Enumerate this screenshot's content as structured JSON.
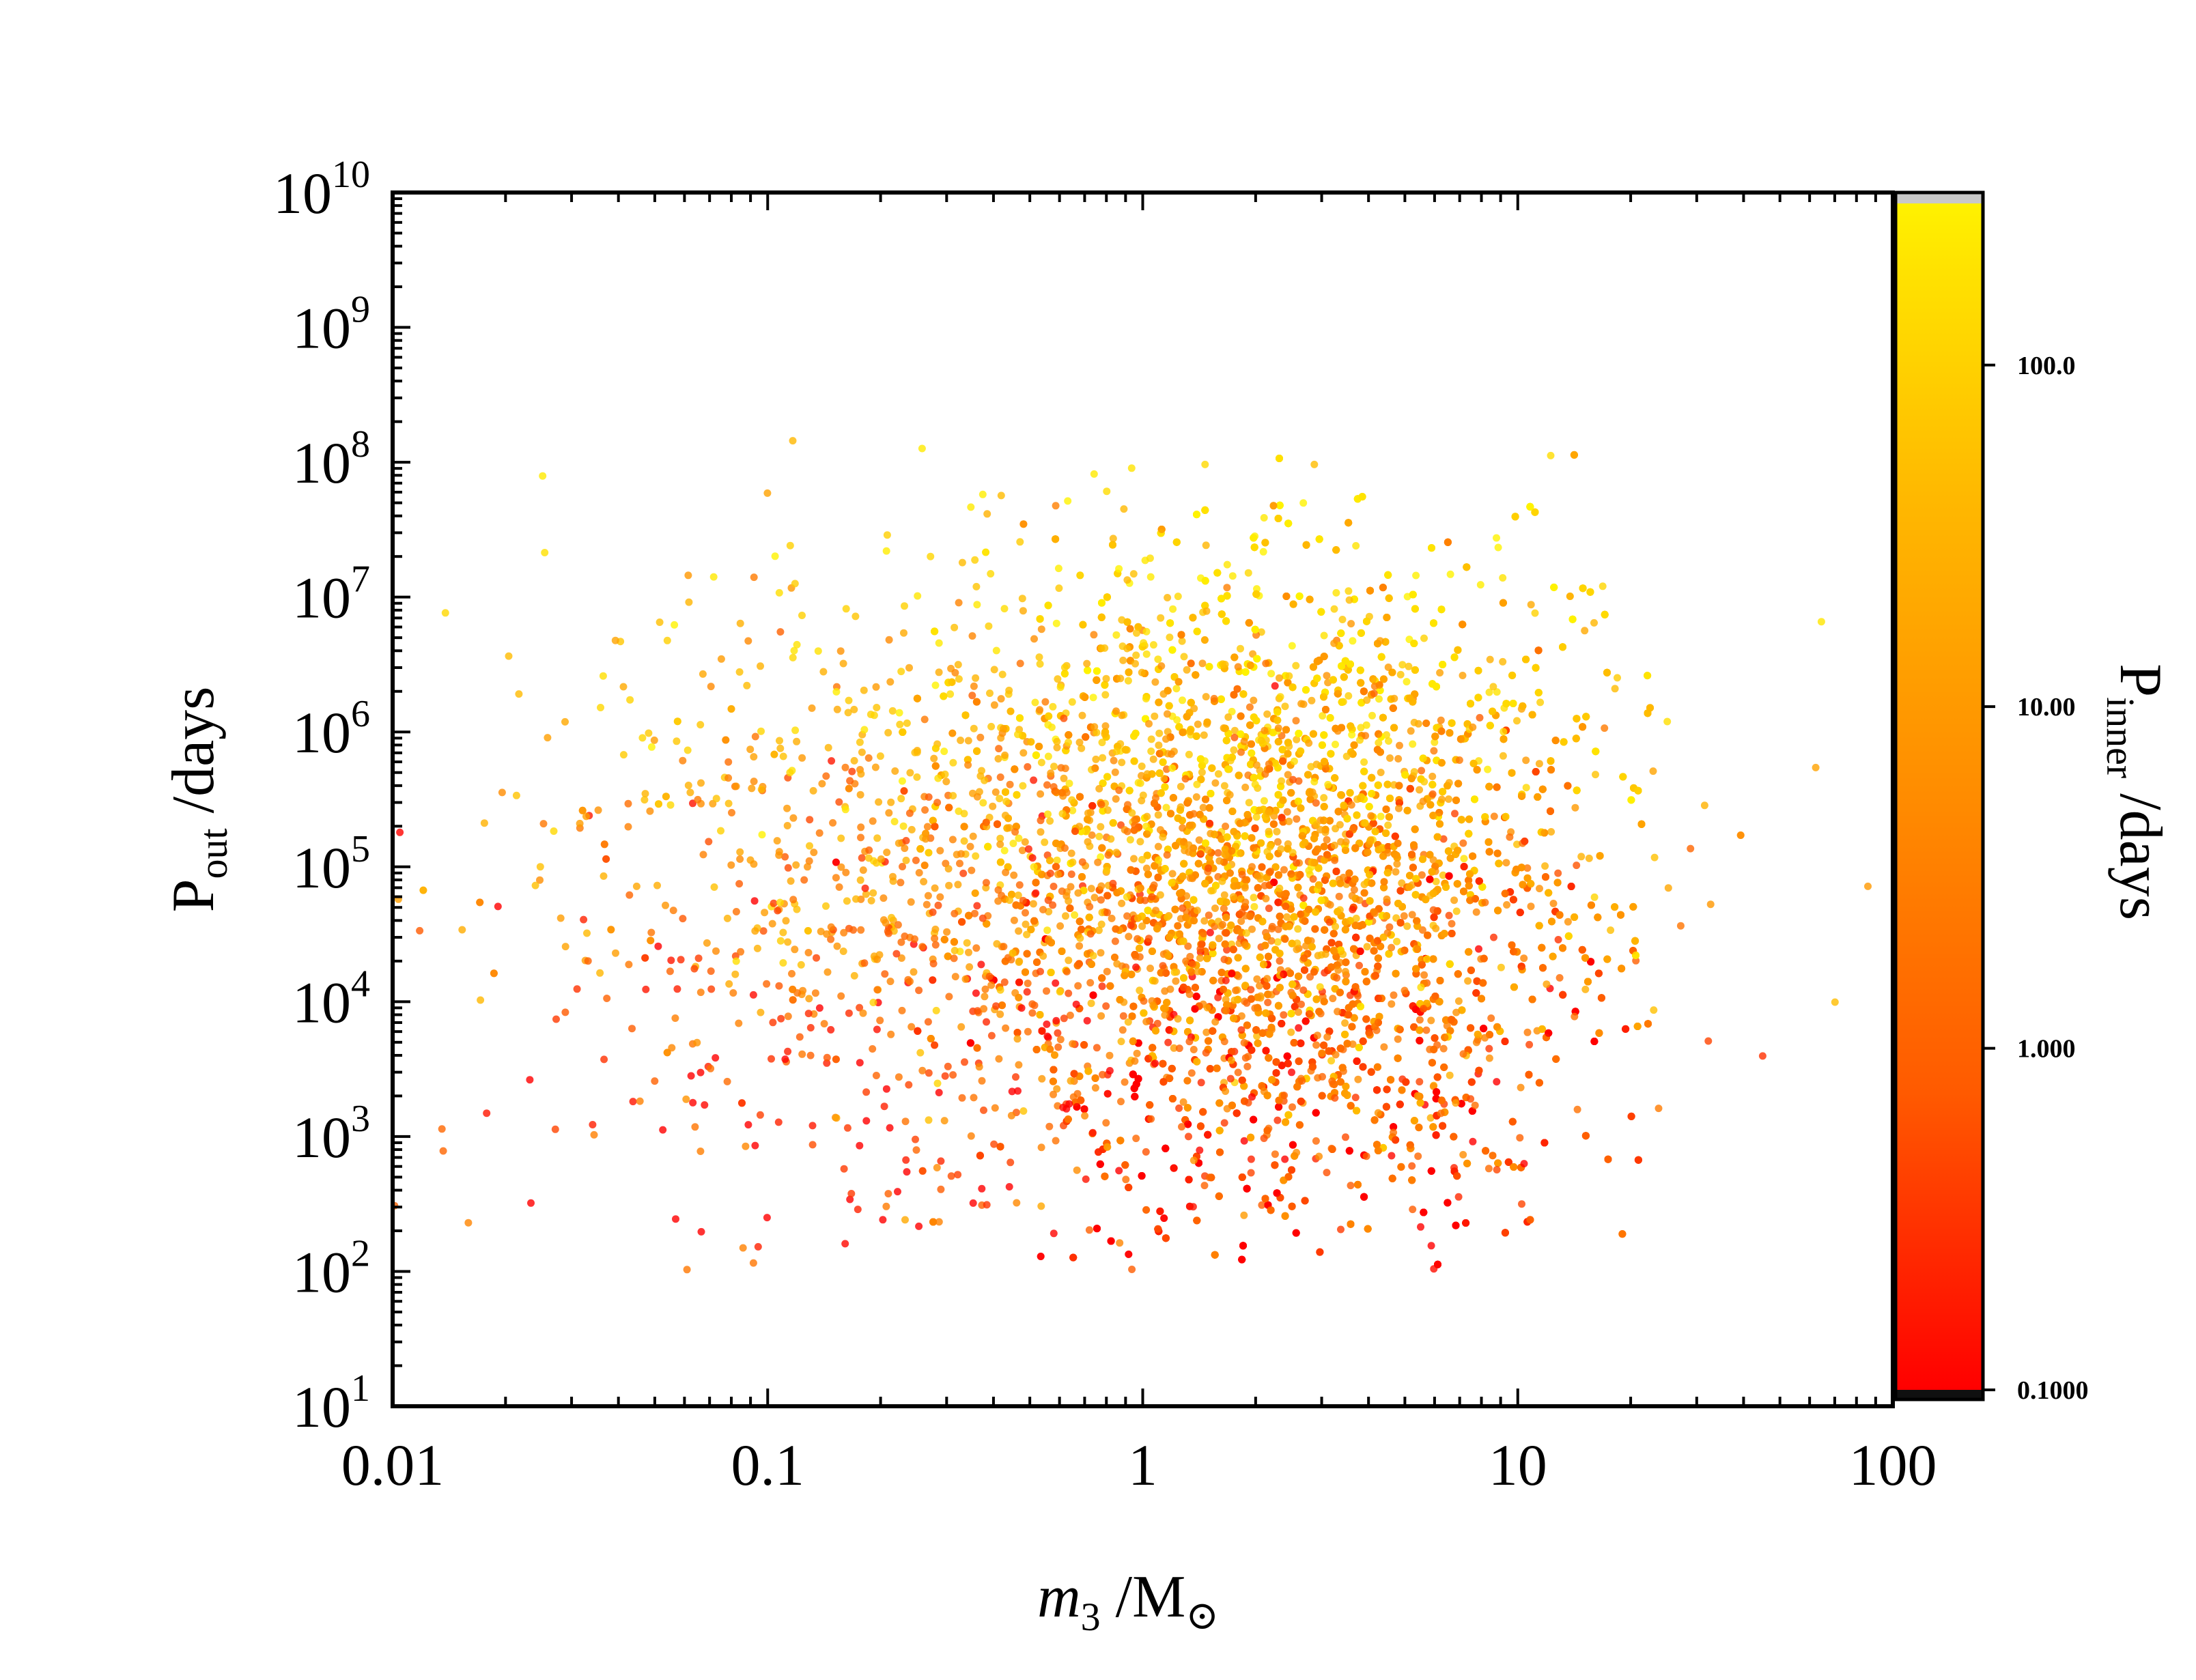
{
  "colors": {
    "background": "#ffffff",
    "axis": "#000000",
    "colormap": [
      "#ff0000",
      "#ff5a00",
      "#ff8c00",
      "#ffb800",
      "#ffe000",
      "#fff200"
    ],
    "cb_over": "#c8c8c8",
    "cb_under": "#101010"
  },
  "chart_data": {
    "type": "scatter",
    "xscale": "log",
    "yscale": "log",
    "xlim": [
      0.01,
      100
    ],
    "ylim": [
      10,
      10000000000
    ],
    "x_ticks": [
      {
        "value": 0.01,
        "label": "0.01"
      },
      {
        "value": 0.1,
        "label": "0.1"
      },
      {
        "value": 1,
        "label": "1"
      },
      {
        "value": 10,
        "label": "10"
      },
      {
        "value": 100,
        "label": "100"
      }
    ],
    "y_ticks": [
      {
        "value": 10,
        "base": "10",
        "exp": "1"
      },
      {
        "value": 100,
        "base": "10",
        "exp": "2"
      },
      {
        "value": 1000,
        "base": "10",
        "exp": "3"
      },
      {
        "value": 10000,
        "base": "10",
        "exp": "4"
      },
      {
        "value": 100000,
        "base": "10",
        "exp": "5"
      },
      {
        "value": 1000000,
        "base": "10",
        "exp": "6"
      },
      {
        "value": 10000000,
        "base": "10",
        "exp": "7"
      },
      {
        "value": 100000000,
        "base": "10",
        "exp": "8"
      },
      {
        "value": 1000000000,
        "base": "10",
        "exp": "9"
      },
      {
        "value": 10000000000,
        "base": "10",
        "exp": "10"
      }
    ],
    "xlabel": {
      "main": "m",
      "sub": "3",
      "rest": " /M",
      "symbol": "⊙"
    },
    "ylabel": {
      "main": "P",
      "sub": "out",
      "rest": " /days"
    },
    "colorbar": {
      "scale": "log",
      "range": [
        0.1,
        300
      ],
      "label": {
        "main": "P",
        "sub": "inner",
        "rest": " /days"
      },
      "ticks": [
        {
          "value": 0.1,
          "label": "0.1000"
        },
        {
          "value": 1,
          "label": "1.000"
        },
        {
          "value": 10,
          "label": "10.00"
        },
        {
          "value": 100,
          "label": "100.0"
        }
      ]
    },
    "populations": [
      {
        "description_free": true,
        "n": 9000,
        "log_x_center": 0.4,
        "log_x_sigma": 0.32,
        "log_y_center": 4.8,
        "log_y_sigma": 1.15,
        "log_x_range": [
          -0.7,
          1.4
        ],
        "log_y_range": [
          2.0,
          8.2
        ],
        "c_mean": 0.45,
        "c_slope": 0.14
      },
      {
        "description_free": true,
        "n": 1600,
        "log_x_center": -0.3,
        "log_x_sigma": 0.5,
        "log_y_center": 4.9,
        "log_y_sigma": 1.2,
        "log_x_range": [
          -2.0,
          2.0
        ],
        "log_y_range": [
          2.0,
          8.2
        ],
        "c_mean": 0.42,
        "c_slope": 0.12
      }
    ]
  }
}
